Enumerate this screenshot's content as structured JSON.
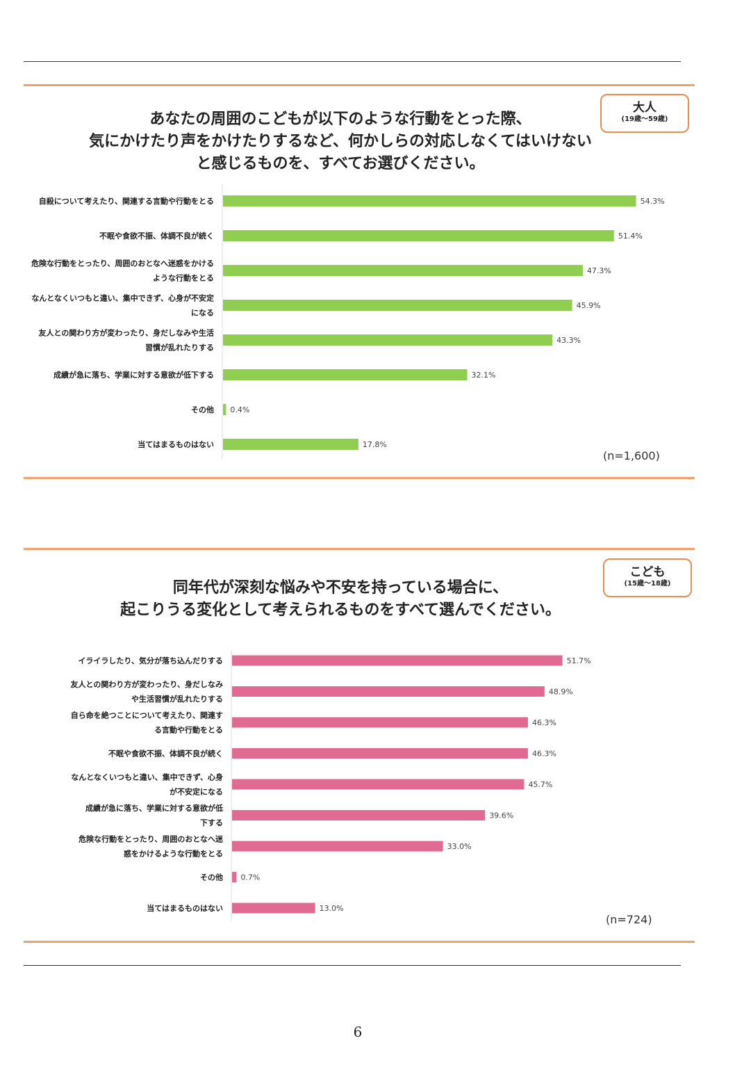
{
  "page_number": "6",
  "chart_data": [
    {
      "type": "bar",
      "orientation": "horizontal",
      "title_lines": [
        "あなたの周囲のこどもが以下のような行動をとった際、",
        "気にかけたり声をかけたりするなど、何かしらの対応しなくてはいけない",
        "と感じるものを、すべてお選びください。"
      ],
      "badge": {
        "label": "大人",
        "sub": "(19歳～59歳)"
      },
      "categories": [
        [
          "自殺について考えたり、関連する言動や行動をとる"
        ],
        [
          "不眠や食欲不振、体調不良が続く"
        ],
        [
          "危険な行動をとったり、周囲のおとなへ迷惑をかける",
          "ような行動をとる"
        ],
        [
          "なんとなくいつもと違い、集中できず、心身が不安定",
          "になる"
        ],
        [
          "友人との関わり方が変わったり、身だしなみや生活",
          "習慣が乱れたりする"
        ],
        [
          "成績が急に落ち、学業に対する意欲が低下する"
        ],
        [
          "その他"
        ],
        [
          "当てはまるものはない"
        ]
      ],
      "values": [
        54.3,
        51.4,
        47.3,
        45.9,
        43.3,
        32.1,
        0.4,
        17.8
      ],
      "value_labels": [
        "54.3%",
        "51.4%",
        "47.3%",
        "45.9%",
        "43.3%",
        "32.1%",
        "0.4%",
        "17.8%"
      ],
      "bar_color": "#8fce50",
      "n_label": "(n=1,600)",
      "xlim": [
        0,
        60
      ]
    },
    {
      "type": "bar",
      "orientation": "horizontal",
      "title_lines": [
        "同年代が深刻な悩みや不安を持っている場合に、",
        "起こりうる変化として考えられるものをすべて選んでください。"
      ],
      "badge": {
        "label": "こども",
        "sub": "(15歳～18歳)"
      },
      "categories": [
        [
          "イライラしたり、気分が落ち込んだりする"
        ],
        [
          "友人との関わり方が変わったり、身だしなみ",
          "や生活習慣が乱れたりする"
        ],
        [
          "自ら命を絶つことについて考えたり、関連す",
          "る言動や行動をとる"
        ],
        [
          "不眠や食欲不振、体調不良が続く"
        ],
        [
          "なんとなくいつもと違い、集中できず、心身",
          "が不安定になる"
        ],
        [
          "成績が急に落ち、学業に対する意欲が低",
          "下する"
        ],
        [
          "危険な行動をとったり、周囲のおとなへ迷",
          "惑をかけるような行動をとる"
        ],
        [
          "その他"
        ],
        [
          "当てはまるものはない"
        ]
      ],
      "values": [
        51.7,
        48.9,
        46.3,
        46.3,
        45.7,
        39.6,
        33.0,
        0.7,
        13.0
      ],
      "value_labels": [
        "51.7%",
        "48.9%",
        "46.3%",
        "46.3%",
        "45.7%",
        "39.6%",
        "33.0%",
        "0.7%",
        "13.0%"
      ],
      "bar_color": "#e06a92",
      "n_label": "(n=724)",
      "xlim": [
        0,
        60
      ]
    }
  ]
}
